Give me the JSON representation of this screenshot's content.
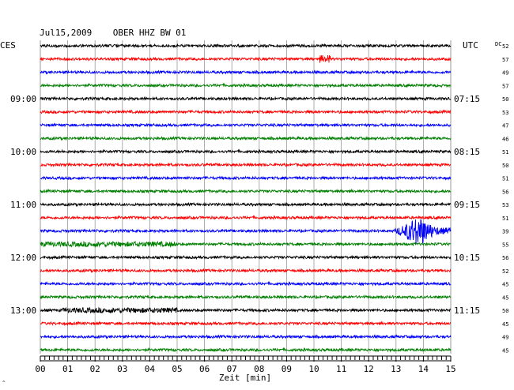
{
  "header": {
    "title": "Jul15,2009    OBER HHZ BW 01",
    "left_zone": "CES",
    "right_zone": "UTC",
    "dc_label": "DC"
  },
  "chart_data": {
    "type": "line",
    "title": "Jul15,2009    OBER HHZ BW 01",
    "xlabel": "Zeit [min]",
    "x_ticks": [
      "00",
      "01",
      "02",
      "03",
      "04",
      "05",
      "06",
      "07",
      "08",
      "09",
      "10",
      "11",
      "12",
      "13",
      "14",
      "15"
    ],
    "xlim": [
      0,
      15
    ],
    "grid": true,
    "left_time_labels": [
      {
        "trace": 4,
        "label": "09:00"
      },
      {
        "trace": 8,
        "label": "10:00"
      },
      {
        "trace": 12,
        "label": "11:00"
      },
      {
        "trace": 16,
        "label": "12:00"
      },
      {
        "trace": 20,
        "label": "13:00"
      }
    ],
    "right_time_labels": [
      {
        "trace": 4,
        "label": "07:15"
      },
      {
        "trace": 8,
        "label": "08:15"
      },
      {
        "trace": 12,
        "label": "09:15"
      },
      {
        "trace": 16,
        "label": "10:15"
      },
      {
        "trace": 20,
        "label": "11:15"
      }
    ],
    "trace_colors": [
      "#000000",
      "#ff0000",
      "#0000ff",
      "#007f00"
    ],
    "dc_offsets": [
      "52",
      "57",
      "49",
      "57",
      "50",
      "53",
      "47",
      "46",
      "51",
      "50",
      "51",
      "56",
      "53",
      "51",
      "39",
      "55",
      "56",
      "52",
      "45",
      "45",
      "50",
      "45",
      "49",
      "45"
    ],
    "events": [
      {
        "trace": 1,
        "x_start": 10.2,
        "x_end": 10.6,
        "amplitude": "small"
      },
      {
        "trace": 14,
        "x_start": 12.0,
        "x_end": 15.0,
        "peak_x": 13.8,
        "amplitude": "large"
      },
      {
        "trace": 15,
        "x_start": 0.0,
        "x_end": 5.0,
        "amplitude": "elevated"
      },
      {
        "trace": 20,
        "x_start": 0.8,
        "x_end": 5.0,
        "amplitude": "elevated"
      }
    ]
  },
  "footer": {
    "corner_mark": "^"
  }
}
